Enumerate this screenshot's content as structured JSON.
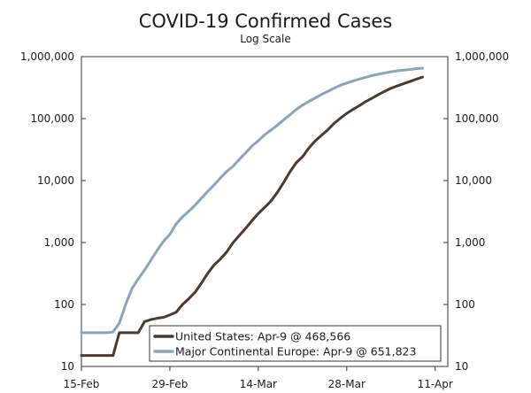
{
  "chart_data": {
    "type": "line",
    "title": "COVID-19 Confirmed Cases",
    "subtitle": "Log Scale",
    "y_scale": "log",
    "ylim": [
      10,
      1000000
    ],
    "xlim": [
      "2020-02-15",
      "2020-04-13"
    ],
    "grid": false,
    "legend_position": "bottom-right",
    "y_ticks": [
      {
        "value": 10,
        "label": "10"
      },
      {
        "value": 100,
        "label": "100"
      },
      {
        "value": 1000,
        "label": "1,000"
      },
      {
        "value": 10000,
        "label": "10,000"
      },
      {
        "value": 100000,
        "label": "100,000"
      },
      {
        "value": 1000000,
        "label": "1,000,000"
      }
    ],
    "x_ticks": [
      {
        "value": "2020-02-15",
        "label": "15-Feb"
      },
      {
        "value": "2020-02-29",
        "label": "29-Feb"
      },
      {
        "value": "2020-03-14",
        "label": "14-Mar"
      },
      {
        "value": "2020-03-28",
        "label": "28-Mar"
      },
      {
        "value": "2020-04-11",
        "label": "11-Apr"
      }
    ],
    "series": [
      {
        "name": "United States: Apr-9 @ 468,566",
        "color": "#4a3b32",
        "points": [
          [
            "2020-02-15",
            15
          ],
          [
            "2020-02-20",
            15
          ],
          [
            "2020-02-21",
            35
          ],
          [
            "2020-02-24",
            35
          ],
          [
            "2020-02-25",
            53
          ],
          [
            "2020-02-26",
            57
          ],
          [
            "2020-02-27",
            60
          ],
          [
            "2020-02-28",
            62
          ],
          [
            "2020-02-29",
            68
          ],
          [
            "2020-03-01",
            75
          ],
          [
            "2020-03-02",
            100
          ],
          [
            "2020-03-03",
            124
          ],
          [
            "2020-03-04",
            158
          ],
          [
            "2020-03-05",
            221
          ],
          [
            "2020-03-06",
            319
          ],
          [
            "2020-03-07",
            435
          ],
          [
            "2020-03-08",
            541
          ],
          [
            "2020-03-09",
            704
          ],
          [
            "2020-03-10",
            994
          ],
          [
            "2020-03-11",
            1301
          ],
          [
            "2020-03-12",
            1697
          ],
          [
            "2020-03-13",
            2247
          ],
          [
            "2020-03-14",
            2943
          ],
          [
            "2020-03-15",
            3680
          ],
          [
            "2020-03-16",
            4663
          ],
          [
            "2020-03-17",
            6411
          ],
          [
            "2020-03-18",
            9259
          ],
          [
            "2020-03-19",
            13789
          ],
          [
            "2020-03-20",
            19383
          ],
          [
            "2020-03-21",
            24207
          ],
          [
            "2020-03-22",
            33566
          ],
          [
            "2020-03-23",
            43663
          ],
          [
            "2020-03-24",
            53740
          ],
          [
            "2020-03-25",
            65778
          ],
          [
            "2020-03-26",
            83836
          ],
          [
            "2020-03-27",
            101657
          ],
          [
            "2020-03-28",
            121465
          ],
          [
            "2020-03-29",
            140909
          ],
          [
            "2020-03-30",
            161831
          ],
          [
            "2020-03-31",
            188172
          ],
          [
            "2020-04-01",
            213242
          ],
          [
            "2020-04-02",
            243622
          ],
          [
            "2020-04-03",
            275367
          ],
          [
            "2020-04-04",
            308650
          ],
          [
            "2020-04-05",
            336802
          ],
          [
            "2020-04-06",
            366317
          ],
          [
            "2020-04-07",
            397121
          ],
          [
            "2020-04-08",
            432132
          ],
          [
            "2020-04-09",
            468566
          ]
        ]
      },
      {
        "name": "Major Continental Europe: Apr-9 @ 651,823",
        "color": "#8aa4bb",
        "points": [
          [
            "2020-02-15",
            35
          ],
          [
            "2020-02-19",
            35
          ],
          [
            "2020-02-20",
            36
          ],
          [
            "2020-02-21",
            50
          ],
          [
            "2020-02-22",
            100
          ],
          [
            "2020-02-23",
            180
          ],
          [
            "2020-02-24",
            260
          ],
          [
            "2020-02-25",
            360
          ],
          [
            "2020-02-26",
            520
          ],
          [
            "2020-02-27",
            750
          ],
          [
            "2020-02-28",
            1050
          ],
          [
            "2020-02-29",
            1350
          ],
          [
            "2020-03-01",
            2000
          ],
          [
            "2020-03-02",
            2600
          ],
          [
            "2020-03-03",
            3200
          ],
          [
            "2020-03-04",
            4000
          ],
          [
            "2020-03-05",
            5200
          ],
          [
            "2020-03-06",
            6700
          ],
          [
            "2020-03-07",
            8500
          ],
          [
            "2020-03-08",
            11000
          ],
          [
            "2020-03-09",
            14000
          ],
          [
            "2020-03-10",
            17000
          ],
          [
            "2020-03-11",
            22000
          ],
          [
            "2020-03-12",
            28000
          ],
          [
            "2020-03-13",
            36000
          ],
          [
            "2020-03-14",
            44000
          ],
          [
            "2020-03-15",
            55000
          ],
          [
            "2020-03-16",
            65000
          ],
          [
            "2020-03-17",
            78000
          ],
          [
            "2020-03-18",
            95000
          ],
          [
            "2020-03-19",
            115000
          ],
          [
            "2020-03-20",
            140000
          ],
          [
            "2020-03-21",
            165000
          ],
          [
            "2020-03-22",
            190000
          ],
          [
            "2020-03-23",
            215000
          ],
          [
            "2020-03-24",
            245000
          ],
          [
            "2020-03-25",
            275000
          ],
          [
            "2020-03-26",
            310000
          ],
          [
            "2020-03-27",
            345000
          ],
          [
            "2020-03-28",
            375000
          ],
          [
            "2020-03-29",
            405000
          ],
          [
            "2020-03-30",
            435000
          ],
          [
            "2020-03-31",
            465000
          ],
          [
            "2020-04-01",
            495000
          ],
          [
            "2020-04-02",
            520000
          ],
          [
            "2020-04-03",
            545000
          ],
          [
            "2020-04-04",
            570000
          ],
          [
            "2020-04-05",
            590000
          ],
          [
            "2020-04-06",
            605000
          ],
          [
            "2020-04-07",
            620000
          ],
          [
            "2020-04-08",
            640000
          ],
          [
            "2020-04-09",
            651823
          ]
        ]
      }
    ]
  }
}
